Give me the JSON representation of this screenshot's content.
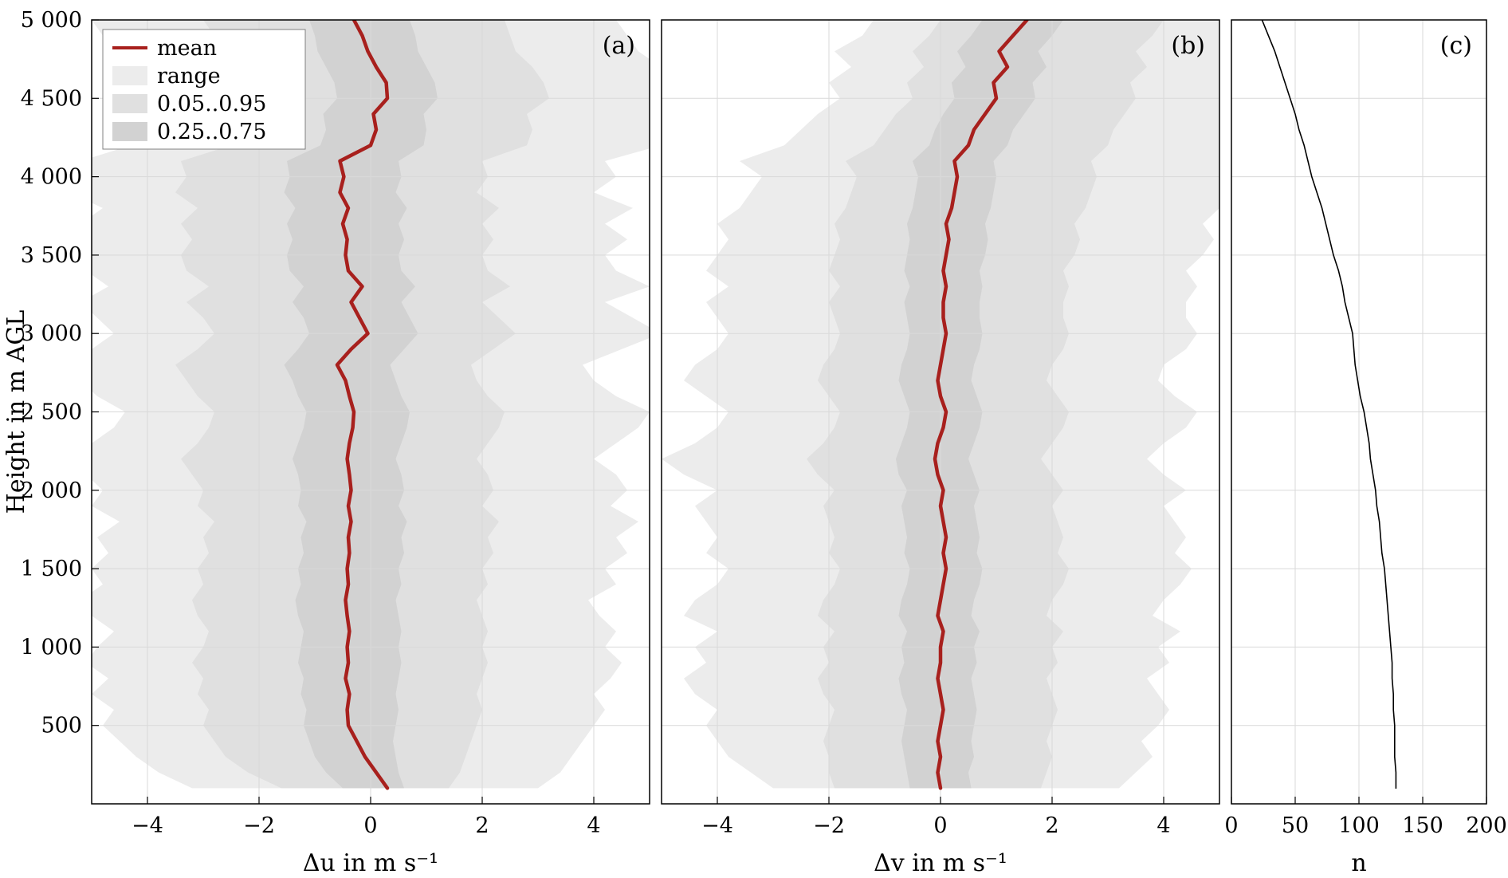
{
  "figure": {
    "ylabel": "Height in m AGL",
    "ylim": [
      0,
      5000
    ],
    "ytick_values": [
      500,
      1000,
      1500,
      2000,
      2500,
      3000,
      3500,
      4000,
      4500,
      5000
    ],
    "ytick_labels": [
      "500",
      "1 000",
      "1 500",
      "2 000",
      "2 500",
      "3 000",
      "3 500",
      "4 000",
      "4 500",
      "5 000"
    ],
    "grid": "on",
    "background": "#ffffff"
  },
  "colors": {
    "mean": "#a8201d",
    "range": "#ececec",
    "p05_p95": "#e0e0e0",
    "p25_p75": "#d2d2d2",
    "grid": "#d9d9d9",
    "frame": "#000000",
    "count_line": "#000000"
  },
  "legend": {
    "position": "top-left-panel-a",
    "entries": [
      {
        "label": "mean",
        "swatch": "line",
        "color_key": "mean"
      },
      {
        "label": "range",
        "swatch": "patch",
        "color_key": "range"
      },
      {
        "label": "0.05..0.95",
        "swatch": "patch",
        "color_key": "p05_p95"
      },
      {
        "label": "0.25..0.75",
        "swatch": "patch",
        "color_key": "p25_p75"
      }
    ]
  },
  "chart_data": [
    {
      "id": "a",
      "type": "area",
      "panel_label": "(a)",
      "xlabel": "Δu in m s⁻¹",
      "xlim": [
        -5,
        5
      ],
      "xticks": [
        -4,
        -2,
        0,
        2,
        4
      ],
      "xtick_labels": [
        "−4",
        "−2",
        "0",
        "2",
        "4"
      ],
      "heights": [
        100,
        200,
        300,
        400,
        500,
        600,
        700,
        800,
        900,
        1000,
        1100,
        1200,
        1300,
        1400,
        1500,
        1600,
        1700,
        1800,
        1900,
        2000,
        2100,
        2200,
        2300,
        2400,
        2500,
        2600,
        2700,
        2800,
        2900,
        3000,
        3100,
        3200,
        3300,
        3400,
        3500,
        3600,
        3700,
        3800,
        3900,
        4000,
        4100,
        4200,
        4300,
        4400,
        4500,
        4600,
        4700,
        4800,
        4900,
        5000
      ],
      "mean": [
        0.3,
        0.1,
        -0.1,
        -0.25,
        -0.4,
        -0.42,
        -0.38,
        -0.45,
        -0.4,
        -0.42,
        -0.38,
        -0.42,
        -0.45,
        -0.4,
        -0.42,
        -0.38,
        -0.4,
        -0.35,
        -0.4,
        -0.35,
        -0.38,
        -0.42,
        -0.38,
        -0.32,
        -0.3,
        -0.38,
        -0.45,
        -0.6,
        -0.35,
        -0.05,
        -0.2,
        -0.35,
        -0.15,
        -0.4,
        -0.45,
        -0.42,
        -0.5,
        -0.4,
        -0.55,
        -0.48,
        -0.55,
        0.0,
        0.1,
        0.05,
        0.3,
        0.28,
        0.1,
        -0.05,
        -0.15,
        -0.3
      ],
      "bands": {
        "range": {
          "min": [
            -3.2,
            -3.8,
            -4.2,
            -4.5,
            -4.8,
            -4.6,
            -5.0,
            -4.7,
            -5.1,
            -4.9,
            -4.6,
            -5.0,
            -5.2,
            -4.8,
            -5.0,
            -4.7,
            -4.9,
            -4.5,
            -5.0,
            -4.8,
            -5.1,
            -5.3,
            -5.0,
            -4.6,
            -4.4,
            -4.9,
            -5.2,
            -5.4,
            -5.0,
            -4.6,
            -4.9,
            -5.2,
            -4.7,
            -5.1,
            -5.3,
            -5.0,
            -5.2,
            -4.8,
            -5.4,
            -5.1,
            -5.2,
            -4.3,
            -4.0,
            -4.2,
            -3.6,
            -3.8,
            -4.2,
            -4.6,
            -4.8,
            -5.0
          ],
          "max": [
            3.0,
            3.4,
            3.6,
            3.8,
            4.0,
            4.2,
            4.0,
            4.3,
            4.5,
            4.2,
            4.4,
            4.1,
            3.9,
            4.4,
            4.2,
            4.6,
            4.4,
            4.8,
            4.3,
            4.6,
            4.4,
            4.0,
            4.4,
            4.8,
            5.0,
            4.4,
            4.0,
            3.8,
            4.5,
            5.2,
            4.7,
            4.2,
            5.0,
            4.4,
            4.2,
            4.6,
            4.2,
            4.7,
            4.0,
            4.4,
            4.2,
            5.2,
            5.4,
            5.2,
            5.6,
            5.4,
            5.2,
            4.8,
            4.6,
            4.4
          ]
        },
        "p05_p95": {
          "min": [
            -1.6,
            -2.2,
            -2.6,
            -2.8,
            -3.0,
            -2.9,
            -3.1,
            -3.0,
            -3.2,
            -3.0,
            -2.9,
            -3.1,
            -3.2,
            -3.0,
            -3.1,
            -2.9,
            -3.0,
            -2.8,
            -3.1,
            -3.0,
            -3.2,
            -3.4,
            -3.1,
            -2.9,
            -2.8,
            -3.1,
            -3.3,
            -3.5,
            -3.1,
            -2.8,
            -3.0,
            -3.3,
            -2.9,
            -3.3,
            -3.4,
            -3.2,
            -3.4,
            -3.1,
            -3.5,
            -3.3,
            -3.4,
            -2.5,
            -2.3,
            -2.4,
            -2.0,
            -2.1,
            -2.4,
            -2.7,
            -2.8,
            -3.0
          ],
          "max": [
            1.4,
            1.6,
            1.7,
            1.8,
            1.9,
            2.0,
            1.9,
            2.0,
            2.1,
            2.0,
            2.1,
            2.0,
            1.9,
            2.1,
            2.0,
            2.2,
            2.1,
            2.3,
            2.0,
            2.2,
            2.1,
            1.9,
            2.1,
            2.3,
            2.4,
            2.1,
            1.9,
            1.8,
            2.2,
            2.6,
            2.3,
            2.0,
            2.5,
            2.1,
            2.0,
            2.2,
            2.0,
            2.3,
            1.9,
            2.1,
            2.0,
            2.8,
            2.9,
            2.8,
            3.2,
            3.1,
            2.9,
            2.6,
            2.5,
            2.4
          ]
        },
        "p25_p75": {
          "min": [
            -0.5,
            -0.8,
            -1.0,
            -1.1,
            -1.2,
            -1.15,
            -1.25,
            -1.2,
            -1.3,
            -1.25,
            -1.2,
            -1.3,
            -1.35,
            -1.25,
            -1.3,
            -1.2,
            -1.25,
            -1.15,
            -1.3,
            -1.25,
            -1.3,
            -1.4,
            -1.3,
            -1.2,
            -1.15,
            -1.3,
            -1.4,
            -1.55,
            -1.3,
            -1.1,
            -1.2,
            -1.4,
            -1.2,
            -1.45,
            -1.5,
            -1.4,
            -1.5,
            -1.35,
            -1.55,
            -1.45,
            -1.5,
            -0.9,
            -0.8,
            -0.85,
            -0.6,
            -0.65,
            -0.8,
            -0.95,
            -1.0,
            -1.1
          ],
          "max": [
            0.6,
            0.5,
            0.45,
            0.4,
            0.45,
            0.5,
            0.45,
            0.5,
            0.55,
            0.5,
            0.55,
            0.5,
            0.45,
            0.55,
            0.5,
            0.6,
            0.55,
            0.65,
            0.5,
            0.6,
            0.55,
            0.45,
            0.55,
            0.65,
            0.7,
            0.55,
            0.45,
            0.35,
            0.6,
            0.85,
            0.7,
            0.55,
            0.8,
            0.55,
            0.5,
            0.6,
            0.5,
            0.65,
            0.45,
            0.55,
            0.5,
            0.95,
            1.0,
            0.95,
            1.2,
            1.15,
            1.0,
            0.85,
            0.8,
            0.7
          ]
        }
      }
    },
    {
      "id": "b",
      "type": "area",
      "panel_label": "(b)",
      "xlabel": "Δv in m s⁻¹",
      "xlim": [
        -5,
        5
      ],
      "xticks": [
        -4,
        -2,
        0,
        2,
        4
      ],
      "xtick_labels": [
        "−4",
        "−2",
        "0",
        "2",
        "4"
      ],
      "heights": [
        100,
        200,
        300,
        400,
        500,
        600,
        700,
        800,
        900,
        1000,
        1100,
        1200,
        1300,
        1400,
        1500,
        1600,
        1700,
        1800,
        1900,
        2000,
        2100,
        2200,
        2300,
        2400,
        2500,
        2600,
        2700,
        2800,
        2900,
        3000,
        3100,
        3200,
        3300,
        3400,
        3500,
        3600,
        3700,
        3800,
        3900,
        4000,
        4100,
        4200,
        4300,
        4400,
        4500,
        4600,
        4700,
        4800,
        4900,
        5000
      ],
      "mean": [
        0.0,
        -0.05,
        0.0,
        -0.05,
        0.0,
        0.05,
        0.0,
        -0.05,
        0.0,
        0.0,
        0.05,
        -0.05,
        0.0,
        0.05,
        0.1,
        0.05,
        0.1,
        0.05,
        0.0,
        0.05,
        -0.05,
        -0.1,
        -0.05,
        0.05,
        0.1,
        0.0,
        -0.05,
        0.0,
        0.05,
        0.1,
        0.05,
        0.05,
        0.1,
        0.05,
        0.1,
        0.15,
        0.1,
        0.2,
        0.25,
        0.3,
        0.25,
        0.5,
        0.6,
        0.8,
        1.0,
        0.95,
        1.2,
        1.05,
        1.3,
        1.55
      ],
      "bands": {
        "range": {
          "min": [
            -3.0,
            -3.4,
            -3.8,
            -4.0,
            -4.2,
            -4.0,
            -4.4,
            -4.6,
            -4.2,
            -4.4,
            -4.0,
            -4.6,
            -4.4,
            -4.0,
            -3.8,
            -4.2,
            -4.0,
            -4.2,
            -4.4,
            -4.0,
            -4.6,
            -5.0,
            -4.4,
            -4.0,
            -3.8,
            -4.2,
            -4.6,
            -4.4,
            -4.0,
            -3.8,
            -4.0,
            -4.2,
            -3.8,
            -4.2,
            -4.0,
            -3.8,
            -4.0,
            -3.6,
            -3.4,
            -3.2,
            -3.6,
            -2.8,
            -2.5,
            -2.2,
            -1.8,
            -2.0,
            -1.6,
            -1.9,
            -1.4,
            -1.2
          ],
          "max": [
            3.2,
            3.5,
            3.8,
            3.6,
            3.9,
            4.1,
            3.9,
            3.7,
            4.1,
            3.9,
            4.3,
            3.8,
            4.0,
            4.3,
            4.5,
            4.2,
            4.4,
            4.2,
            4.0,
            4.4,
            4.0,
            3.7,
            4.0,
            4.4,
            4.6,
            4.2,
            3.9,
            4.0,
            4.4,
            4.6,
            4.4,
            4.4,
            4.6,
            4.4,
            4.7,
            4.9,
            4.7,
            5.0,
            5.1,
            5.2,
            5.0,
            5.3,
            5.2,
            5.4,
            5.5,
            5.3,
            5.5,
            5.2,
            5.4,
            5.5
          ]
        },
        "p05_p95": {
          "min": [
            -1.9,
            -2.0,
            -2.0,
            -2.1,
            -2.0,
            -1.9,
            -2.1,
            -2.2,
            -2.0,
            -2.1,
            -1.9,
            -2.2,
            -2.1,
            -1.9,
            -1.8,
            -2.0,
            -1.9,
            -2.0,
            -2.1,
            -1.9,
            -2.2,
            -2.4,
            -2.1,
            -1.9,
            -1.8,
            -2.0,
            -2.2,
            -2.1,
            -1.9,
            -1.8,
            -1.9,
            -2.0,
            -1.8,
            -2.0,
            -1.9,
            -1.8,
            -1.9,
            -1.7,
            -1.6,
            -1.5,
            -1.7,
            -1.2,
            -1.0,
            -0.8,
            -0.5,
            -0.6,
            -0.3,
            -0.5,
            -0.2,
            0.0
          ],
          "max": [
            1.8,
            1.9,
            2.0,
            1.9,
            2.0,
            2.1,
            2.0,
            1.9,
            2.1,
            2.0,
            2.2,
            1.9,
            2.0,
            2.2,
            2.3,
            2.1,
            2.2,
            2.1,
            2.0,
            2.2,
            2.0,
            1.8,
            2.0,
            2.2,
            2.3,
            2.1,
            1.9,
            2.0,
            2.2,
            2.3,
            2.2,
            2.2,
            2.3,
            2.2,
            2.4,
            2.5,
            2.4,
            2.6,
            2.7,
            2.8,
            2.7,
            3.0,
            3.1,
            3.3,
            3.5,
            3.4,
            3.7,
            3.5,
            3.8,
            4.0
          ]
        },
        "p25_p75": {
          "min": [
            -0.55,
            -0.6,
            -0.65,
            -0.7,
            -0.65,
            -0.6,
            -0.7,
            -0.75,
            -0.65,
            -0.7,
            -0.6,
            -0.75,
            -0.7,
            -0.6,
            -0.55,
            -0.65,
            -0.6,
            -0.65,
            -0.7,
            -0.6,
            -0.75,
            -0.8,
            -0.7,
            -0.6,
            -0.55,
            -0.65,
            -0.75,
            -0.7,
            -0.6,
            -0.55,
            -0.6,
            -0.65,
            -0.55,
            -0.65,
            -0.6,
            -0.55,
            -0.6,
            -0.5,
            -0.45,
            -0.4,
            -0.5,
            -0.2,
            -0.1,
            0.05,
            0.25,
            0.2,
            0.45,
            0.3,
            0.55,
            0.75
          ],
          "max": [
            0.55,
            0.5,
            0.6,
            0.55,
            0.6,
            0.65,
            0.6,
            0.55,
            0.65,
            0.6,
            0.7,
            0.55,
            0.6,
            0.7,
            0.75,
            0.65,
            0.7,
            0.65,
            0.6,
            0.7,
            0.6,
            0.5,
            0.6,
            0.7,
            0.75,
            0.65,
            0.55,
            0.6,
            0.7,
            0.75,
            0.7,
            0.7,
            0.75,
            0.7,
            0.8,
            0.85,
            0.8,
            0.9,
            0.95,
            1.0,
            0.95,
            1.2,
            1.3,
            1.5,
            1.7,
            1.65,
            1.9,
            1.75,
            2.0,
            2.2
          ]
        }
      }
    },
    {
      "id": "c",
      "type": "line",
      "panel_label": "(c)",
      "xlabel": "n",
      "xlim": [
        0,
        200
      ],
      "xticks": [
        0,
        50,
        100,
        150,
        200
      ],
      "xtick_labels": [
        "0",
        "50",
        "100",
        "150",
        "200"
      ],
      "heights": [
        100,
        200,
        300,
        400,
        500,
        600,
        700,
        800,
        900,
        1000,
        1100,
        1200,
        1300,
        1400,
        1500,
        1600,
        1700,
        1800,
        1900,
        2000,
        2100,
        2200,
        2300,
        2400,
        2500,
        2600,
        2700,
        2800,
        2900,
        3000,
        3100,
        3200,
        3300,
        3400,
        3500,
        3600,
        3700,
        3800,
        3900,
        4000,
        4100,
        4200,
        4300,
        4400,
        4500,
        4600,
        4700,
        4800,
        4900,
        5000
      ],
      "values": [
        129,
        129,
        128,
        128,
        128,
        127,
        127,
        126,
        126,
        125,
        124,
        123,
        122,
        121,
        120,
        118,
        117,
        116,
        114,
        113,
        111,
        109,
        108,
        106,
        104,
        101,
        99,
        97,
        96,
        95,
        92,
        89,
        87,
        84,
        80,
        77,
        74,
        71,
        67,
        63,
        60,
        57,
        53,
        50,
        46,
        42,
        38,
        34,
        29,
        24
      ]
    }
  ]
}
